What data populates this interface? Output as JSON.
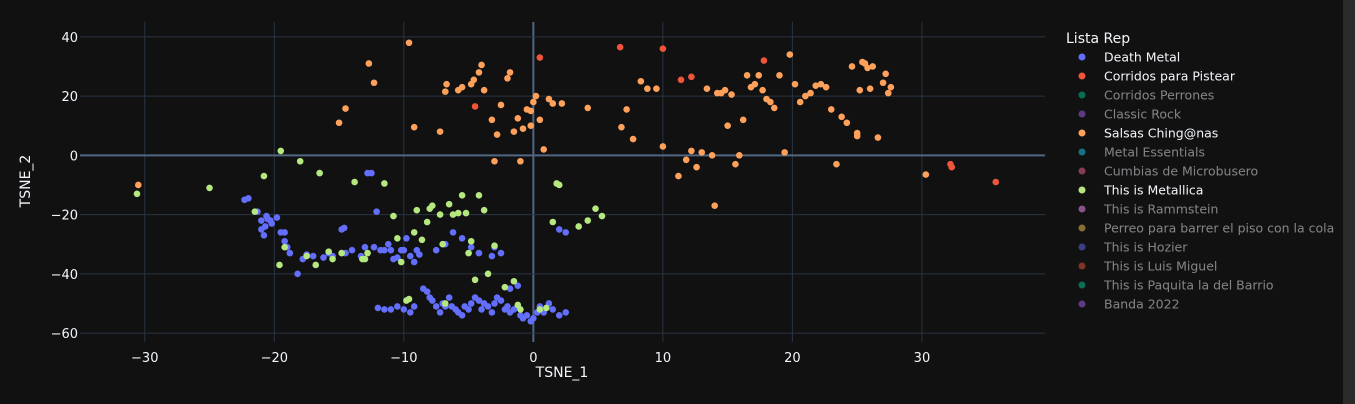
{
  "chart_data": {
    "type": "scatter",
    "title": "",
    "xlabel": "TSNE_1",
    "ylabel": "TSNE_2",
    "xlim": [
      -35,
      39.5
    ],
    "ylim": [
      -63,
      45
    ],
    "xticks": [
      -30,
      -20,
      -10,
      0,
      10,
      20,
      30
    ],
    "yticks": [
      -60,
      -40,
      -20,
      0,
      20,
      40
    ],
    "xtick_labels": [
      "−30",
      "−20",
      "−10",
      "0",
      "10",
      "20",
      "30"
    ],
    "ytick_labels": [
      "−60",
      "−40",
      "−20",
      "0",
      "20",
      "40"
    ],
    "grid": true,
    "legend_title": "Lista Rep",
    "legend_position": "right",
    "series": [
      {
        "name": "Death Metal",
        "color": "#636efa",
        "visible": true,
        "points": [
          [
            -22.3,
            -15
          ],
          [
            -22,
            -14.5
          ],
          [
            -21.3,
            -19
          ],
          [
            -21,
            -22
          ],
          [
            -20.7,
            -24
          ],
          [
            -20.5,
            -21.5
          ],
          [
            -20.3,
            -22
          ],
          [
            -20.6,
            -20.5
          ],
          [
            -21,
            -25
          ],
          [
            -20.8,
            -27
          ],
          [
            -20.2,
            -23
          ],
          [
            -19.8,
            -21
          ],
          [
            -19.5,
            -26
          ],
          [
            -19.2,
            -29
          ],
          [
            -19,
            -31
          ],
          [
            -18.8,
            -33
          ],
          [
            -19.2,
            -26
          ],
          [
            -18.2,
            -40
          ],
          [
            -17.8,
            -35
          ],
          [
            -17.5,
            -33.5
          ],
          [
            -17,
            -34
          ],
          [
            -16.2,
            -34.5
          ],
          [
            -15.8,
            -33
          ],
          [
            -15.5,
            -34
          ],
          [
            -14.8,
            -25
          ],
          [
            -14.6,
            -24.5
          ],
          [
            -14.5,
            -33
          ],
          [
            -14,
            -32
          ],
          [
            -13.3,
            -34
          ],
          [
            -13,
            -31
          ],
          [
            -12.8,
            -6
          ],
          [
            -12.5,
            -6
          ],
          [
            -12.3,
            -31
          ],
          [
            -12.1,
            -19
          ],
          [
            -11.8,
            -32
          ],
          [
            -11.5,
            -32
          ],
          [
            -11.2,
            -30
          ],
          [
            -11,
            -32
          ],
          [
            -10.8,
            -35
          ],
          [
            -10.5,
            -34.5
          ],
          [
            -10.2,
            -32
          ],
          [
            -10,
            -32
          ],
          [
            -9.8,
            -28
          ],
          [
            -9.5,
            -34
          ],
          [
            -9.2,
            -36
          ],
          [
            -9,
            -32
          ],
          [
            -8.8,
            -33.5
          ],
          [
            -12,
            -51.5
          ],
          [
            -11.5,
            -52
          ],
          [
            -11,
            -52
          ],
          [
            -10.5,
            -51
          ],
          [
            -10,
            -52
          ],
          [
            -9.5,
            -53
          ],
          [
            -9.2,
            -51
          ],
          [
            -8.5,
            -45
          ],
          [
            -8.2,
            -46
          ],
          [
            -8,
            -48
          ],
          [
            -7.8,
            -49
          ],
          [
            -7.5,
            -51
          ],
          [
            -7.2,
            -53
          ],
          [
            -7,
            -50
          ],
          [
            -6.8,
            -51
          ],
          [
            -6.5,
            -48
          ],
          [
            -6.3,
            -51
          ],
          [
            -6,
            -52
          ],
          [
            -5.8,
            -53
          ],
          [
            -5.5,
            -54
          ],
          [
            -5.3,
            -51
          ],
          [
            -5,
            -52
          ],
          [
            -4.8,
            -50
          ],
          [
            -4.5,
            -48
          ],
          [
            -4.2,
            -49
          ],
          [
            -4,
            -52
          ],
          [
            -3.8,
            -50
          ],
          [
            -3.5,
            -51
          ],
          [
            -3.2,
            -53
          ],
          [
            -3,
            -50
          ],
          [
            -2.8,
            -48
          ],
          [
            -2.5,
            -49
          ],
          [
            -2.2,
            -52
          ],
          [
            -2,
            -51
          ],
          [
            -1.8,
            -53
          ],
          [
            -1.5,
            -52
          ],
          [
            -1.2,
            -51
          ],
          [
            -1,
            -54
          ],
          [
            -0.8,
            -55
          ],
          [
            -0.5,
            -54
          ],
          [
            -0.2,
            -56
          ],
          [
            0,
            -55
          ],
          [
            0.3,
            -53
          ],
          [
            0.5,
            -51
          ],
          [
            0.8,
            -53
          ],
          [
            1.2,
            -50
          ],
          [
            1.5,
            -52
          ],
          [
            2,
            -54
          ],
          [
            2.5,
            -53
          ],
          [
            -1.8,
            -45
          ],
          [
            -1.2,
            -44
          ],
          [
            -7.5,
            -32
          ],
          [
            -6.8,
            -30
          ],
          [
            -6.2,
            -26
          ],
          [
            -5.5,
            -28
          ],
          [
            -4.8,
            -31
          ],
          [
            -4.2,
            -33
          ],
          [
            -3.2,
            -34
          ],
          [
            -3,
            -31
          ],
          [
            -2.5,
            -33
          ],
          [
            2,
            -25
          ],
          [
            2.5,
            -26
          ]
        ]
      },
      {
        "name": "Corridos para Pistear",
        "color": "#ef553b",
        "visible": true,
        "points": [
          [
            -4.5,
            16.5
          ],
          [
            0.5,
            33
          ],
          [
            6.7,
            36.5
          ],
          [
            10,
            36
          ],
          [
            11.4,
            25.5
          ],
          [
            12.2,
            26.5
          ],
          [
            17.8,
            32
          ],
          [
            32.2,
            -3
          ],
          [
            32.3,
            -4
          ],
          [
            35.7,
            -9
          ]
        ]
      },
      {
        "name": "Corridos Perrones",
        "color": "#00cc96",
        "visible": false,
        "points": []
      },
      {
        "name": "Classic Rock",
        "color": "#ab63fa",
        "visible": false,
        "points": []
      },
      {
        "name": "Salsas Ching@nas",
        "color": "#ffa15a",
        "visible": true,
        "points": [
          [
            -30.5,
            -10
          ],
          [
            -15,
            11
          ],
          [
            -14.5,
            15.8
          ],
          [
            -12.7,
            31
          ],
          [
            -12.3,
            24.5
          ],
          [
            -9.6,
            38
          ],
          [
            -9.2,
            9.5
          ],
          [
            -7.2,
            8
          ],
          [
            -6.8,
            21.5
          ],
          [
            -6.7,
            24
          ],
          [
            -5.8,
            22
          ],
          [
            -5.5,
            23
          ],
          [
            -4.8,
            24
          ],
          [
            -4.6,
            25.5
          ],
          [
            -4.2,
            28
          ],
          [
            -4,
            30.5
          ],
          [
            -3.8,
            22
          ],
          [
            -3.2,
            12
          ],
          [
            -3,
            -2
          ],
          [
            -2.8,
            7
          ],
          [
            -2.5,
            17
          ],
          [
            -2,
            26
          ],
          [
            -1.8,
            28
          ],
          [
            -1.5,
            8
          ],
          [
            -1.2,
            12.5
          ],
          [
            -1,
            -2
          ],
          [
            -0.8,
            9
          ],
          [
            -0.5,
            15.5
          ],
          [
            -0.2,
            15
          ],
          [
            0,
            18
          ],
          [
            0.2,
            20
          ],
          [
            0.5,
            12
          ],
          [
            0.8,
            2
          ],
          [
            1.2,
            19
          ],
          [
            1.5,
            17.5
          ],
          [
            2.2,
            17.5
          ],
          [
            4.2,
            16
          ],
          [
            6.8,
            9.5
          ],
          [
            7.2,
            15.5
          ],
          [
            7.7,
            5.5
          ],
          [
            8.3,
            25
          ],
          [
            8.8,
            22.5
          ],
          [
            9.5,
            22.5
          ],
          [
            10,
            3
          ],
          [
            11.2,
            -7
          ],
          [
            11.8,
            -1.5
          ],
          [
            12.2,
            1.5
          ],
          [
            12.6,
            -4
          ],
          [
            13,
            1
          ],
          [
            13.4,
            22.5
          ],
          [
            13.8,
            0
          ],
          [
            14,
            -17
          ],
          [
            14.2,
            21
          ],
          [
            14.5,
            21
          ],
          [
            14.8,
            22
          ],
          [
            15,
            10
          ],
          [
            15.3,
            20.5
          ],
          [
            15.6,
            -3
          ],
          [
            15.9,
            0
          ],
          [
            16.2,
            12
          ],
          [
            16.5,
            27
          ],
          [
            16.8,
            23
          ],
          [
            17.1,
            24
          ],
          [
            17.4,
            27
          ],
          [
            17.7,
            22
          ],
          [
            18,
            19
          ],
          [
            18.3,
            18
          ],
          [
            18.6,
            16
          ],
          [
            19,
            27
          ],
          [
            19.4,
            1
          ],
          [
            19.8,
            34
          ],
          [
            20.2,
            24
          ],
          [
            20.6,
            18
          ],
          [
            21,
            20
          ],
          [
            21.4,
            21
          ],
          [
            21.8,
            23.5
          ],
          [
            22.2,
            24
          ],
          [
            22.6,
            23
          ],
          [
            23,
            15.5
          ],
          [
            23.4,
            -3
          ],
          [
            23.8,
            13
          ],
          [
            24.2,
            11
          ],
          [
            24.6,
            30
          ],
          [
            25,
            6.5
          ],
          [
            25.2,
            22
          ],
          [
            25.4,
            31.5
          ],
          [
            25.6,
            31
          ],
          [
            25.8,
            29.5
          ],
          [
            26,
            22.5
          ],
          [
            26.2,
            30
          ],
          [
            26.6,
            6
          ],
          [
            27,
            24.5
          ],
          [
            27.2,
            27.5
          ],
          [
            27.4,
            21
          ],
          [
            27.6,
            23
          ],
          [
            30.3,
            -6.5
          ],
          [
            25,
            7.5
          ],
          [
            -0.2,
            10
          ]
        ]
      },
      {
        "name": "Metal Essentials",
        "color": "#19d3f3",
        "visible": false,
        "points": []
      },
      {
        "name": "Cumbias de Microbusero",
        "color": "#ff6692",
        "visible": false,
        "points": []
      },
      {
        "name": "This is Metallica",
        "color": "#b6e880",
        "visible": true,
        "points": [
          [
            -30.6,
            -13
          ],
          [
            -25,
            -11
          ],
          [
            -21.5,
            -19
          ],
          [
            -20.8,
            -7
          ],
          [
            -19.5,
            1.5
          ],
          [
            -19.2,
            -31
          ],
          [
            -19.6,
            -37
          ],
          [
            -18,
            -2
          ],
          [
            -17.5,
            -34
          ],
          [
            -16.8,
            -37
          ],
          [
            -16.5,
            -6
          ],
          [
            -15.5,
            -35
          ],
          [
            -14.8,
            -33
          ],
          [
            -13.8,
            -9
          ],
          [
            -13.2,
            -35
          ],
          [
            -11.5,
            -9.5
          ],
          [
            -10.8,
            -20.5
          ],
          [
            -10.5,
            -28
          ],
          [
            -10.2,
            -36
          ],
          [
            -9.8,
            -49
          ],
          [
            -9.2,
            -26
          ],
          [
            -9,
            -18.5
          ],
          [
            -8.6,
            -28.5
          ],
          [
            -8.2,
            -22.5
          ],
          [
            -8,
            -18
          ],
          [
            -7.8,
            -17
          ],
          [
            -7.2,
            -20
          ],
          [
            -7,
            -30
          ],
          [
            -6.8,
            -50
          ],
          [
            -6.5,
            -16.5
          ],
          [
            -6.2,
            -20
          ],
          [
            -5.8,
            -19.5
          ],
          [
            -5.5,
            -13.5
          ],
          [
            -5.2,
            -19.5
          ],
          [
            -5,
            -33
          ],
          [
            -4.8,
            -29
          ],
          [
            -4.5,
            -42
          ],
          [
            -4.2,
            -13.5
          ],
          [
            -3.8,
            -18.5
          ],
          [
            -3.5,
            -40
          ],
          [
            -3,
            -30.5
          ],
          [
            -2.2,
            -44.5
          ],
          [
            -1.5,
            -42.5
          ],
          [
            -1,
            -52
          ],
          [
            0.5,
            -52
          ],
          [
            1,
            -51.5
          ],
          [
            1.5,
            -22.5
          ],
          [
            1.8,
            -9.5
          ],
          [
            2,
            -10
          ],
          [
            3.5,
            -24
          ],
          [
            4.2,
            -22
          ],
          [
            4.8,
            -18
          ],
          [
            5.3,
            -20.5
          ],
          [
            -15.8,
            -32.5
          ],
          [
            -13,
            -35
          ],
          [
            -12.8,
            -33
          ],
          [
            -1.2,
            -50.5
          ],
          [
            -9.6,
            -48.5
          ]
        ]
      },
      {
        "name": "This is Rammstein",
        "color": "#ff97ff",
        "visible": false,
        "points": []
      },
      {
        "name": "Perreo para barrer el piso con la cola",
        "color": "#fecb52",
        "visible": false,
        "points": []
      },
      {
        "name": "This is Hozier",
        "color": "#636efa",
        "visible": false,
        "points": []
      },
      {
        "name": "This is Luis Miguel",
        "color": "#ef553b",
        "visible": false,
        "points": []
      },
      {
        "name": "This is Paquita la del Barrio",
        "color": "#00cc96",
        "visible": false,
        "points": []
      },
      {
        "name": "Banda 2022",
        "color": "#ab63fa",
        "visible": false,
        "points": []
      }
    ]
  }
}
